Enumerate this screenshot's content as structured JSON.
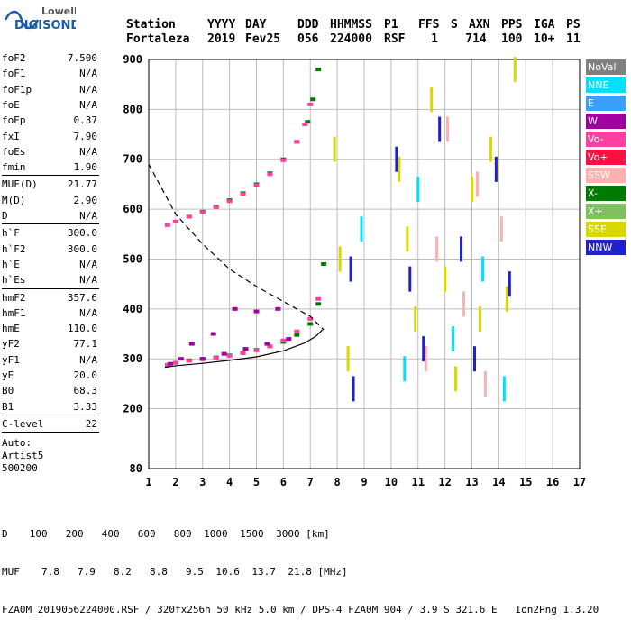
{
  "logo": {
    "top": "Lowell",
    "bottom": "DIGISONDE"
  },
  "header": {
    "labels": [
      "Station",
      "YYYY",
      "DAY",
      "DDD",
      "HHMMSS",
      "P1",
      "FFS",
      "S",
      "AXN",
      "PPS",
      "IGA",
      "PS"
    ],
    "values": [
      "Fortaleza",
      "2019",
      "Fev25",
      "056",
      "224000",
      "RSF",
      "1",
      "714",
      "100",
      "10+",
      "11"
    ]
  },
  "params": {
    "group1": [
      {
        "label": "foF2",
        "value": "7.500"
      },
      {
        "label": "foF1",
        "value": "N/A"
      },
      {
        "label": "foF1p",
        "value": "N/A"
      },
      {
        "label": "foE",
        "value": "N/A"
      },
      {
        "label": "foEp",
        "value": "0.37"
      },
      {
        "label": "fxI",
        "value": "7.90"
      },
      {
        "label": "foEs",
        "value": "N/A"
      },
      {
        "label": "fmin",
        "value": "1.90"
      }
    ],
    "group2": [
      {
        "label": "MUF(D)",
        "value": "21.77"
      },
      {
        "label": "M(D)",
        "value": "2.90"
      },
      {
        "label": "D",
        "value": "N/A"
      }
    ],
    "group3": [
      {
        "label": "h`F",
        "value": "300.0"
      },
      {
        "label": "h`F2",
        "value": "300.0"
      },
      {
        "label": "h`E",
        "value": "N/A"
      },
      {
        "label": "h`Es",
        "value": "N/A"
      }
    ],
    "group4": [
      {
        "label": "hmF2",
        "value": "357.6"
      },
      {
        "label": "hmF1",
        "value": "N/A"
      },
      {
        "label": "hmE",
        "value": "110.0"
      },
      {
        "label": "yF2",
        "value": "77.1"
      },
      {
        "label": "yF1",
        "value": "N/A"
      },
      {
        "label": "yE",
        "value": "20.0"
      },
      {
        "label": "B0",
        "value": "68.3"
      },
      {
        "label": "B1",
        "value": "3.33"
      }
    ],
    "clevel": {
      "label": "C-level",
      "value": "22"
    },
    "auto": [
      "Auto:",
      "Artist5",
      "500200"
    ]
  },
  "legend": [
    {
      "label": "NoVal",
      "color": "#808080"
    },
    {
      "label": "NNE",
      "color": "#00e0ff"
    },
    {
      "label": "E",
      "color": "#3aa0ff"
    },
    {
      "label": "W",
      "color": "#a000a0"
    },
    {
      "label": "Vo-",
      "color": "#ff40a0"
    },
    {
      "label": "Vo+",
      "color": "#ff1040"
    },
    {
      "label": "SSW",
      "color": "#ffb0b0"
    },
    {
      "label": "X-",
      "color": "#007a00"
    },
    {
      "label": "X+",
      "color": "#80c060"
    },
    {
      "label": "SSE",
      "color": "#d8d800"
    },
    {
      "label": "NNW",
      "color": "#2020d0"
    }
  ],
  "footer": {
    "row1": {
      "label": "D",
      "values": [
        "100",
        "200",
        "400",
        "600",
        "800",
        "1000",
        "1500",
        "3000"
      ],
      "unit": "[km]"
    },
    "row2": {
      "label": "MUF",
      "values": [
        "7.8",
        "7.9",
        "8.2",
        "8.8",
        "9.5",
        "10.6",
        "13.7",
        "21.8"
      ],
      "unit": "[MHz]"
    },
    "row3": "FZA0M_2019056224000.RSF / 320fx256h 50 kHz 5.0 km / DPS-4 FZA0M 904 / 3.9 S 321.6 E   Ion2Png 1.3.20"
  },
  "chart_data": {
    "type": "scatter",
    "title": "",
    "xlabel": "",
    "ylabel": "",
    "xlim": [
      1,
      17
    ],
    "ylim": [
      80,
      900
    ],
    "xticks": [
      1,
      2,
      3,
      4,
      5,
      6,
      7,
      8,
      9,
      10,
      11,
      12,
      13,
      14,
      15,
      16,
      17
    ],
    "yticks": [
      80,
      200,
      300,
      400,
      500,
      600,
      700,
      800,
      900
    ],
    "grid": true,
    "legend_position": "right",
    "series": [
      {
        "name": "X-",
        "x": [
          2.0,
          2.5,
          3.0,
          3.5,
          4.0,
          4.5,
          5.0,
          5.5,
          6.0,
          6.5,
          7.0,
          7.3,
          7.5
        ],
        "y": [
          292,
          297,
          300,
          303,
          307,
          312,
          318,
          325,
          334,
          348,
          370,
          410,
          490
        ]
      },
      {
        "name": "Vo-",
        "x": [
          1.7,
          2.0,
          2.5,
          3.0,
          3.5,
          4.0,
          4.5,
          5.0,
          5.5,
          6.0,
          6.5,
          7.0,
          7.3
        ],
        "y": [
          288,
          292,
          296,
          299,
          302,
          306,
          311,
          317,
          325,
          337,
          355,
          380,
          420
        ]
      },
      {
        "name": "X-",
        "x": [
          2.0,
          2.5,
          3.0,
          3.5,
          4.0,
          4.5,
          5.0,
          5.5,
          6.0,
          6.5,
          6.9,
          7.1,
          7.3
        ],
        "y": [
          575,
          585,
          595,
          605,
          618,
          632,
          650,
          672,
          700,
          735,
          775,
          820,
          880
        ]
      },
      {
        "name": "Vo-",
        "x": [
          1.7,
          2.0,
          2.5,
          3.0,
          3.5,
          4.0,
          4.5,
          5.0,
          5.5,
          6.0,
          6.5,
          6.8,
          7.0
        ],
        "y": [
          568,
          575,
          585,
          594,
          604,
          616,
          630,
          648,
          670,
          698,
          735,
          770,
          810
        ]
      },
      {
        "name": "W",
        "x": [
          1.8,
          2.2,
          2.6,
          3.0,
          3.4,
          3.8,
          4.2,
          4.6,
          5.0,
          5.4,
          5.8,
          6.2
        ],
        "y": [
          290,
          300,
          330,
          300,
          350,
          310,
          400,
          320,
          395,
          330,
          400,
          340
        ]
      },
      {
        "name": "SSE",
        "x": [
          7.9,
          8.1,
          8.4,
          10.3,
          10.6,
          10.9,
          11.5,
          12.0,
          12.4,
          13.0,
          13.3,
          13.7,
          14.3,
          14.6
        ],
        "y": [
          720,
          500,
          300,
          680,
          540,
          380,
          820,
          460,
          260,
          640,
          380,
          720,
          420,
          880
        ]
      },
      {
        "name": "NNW",
        "x": [
          8.5,
          8.6,
          10.2,
          10.7,
          11.2,
          11.8,
          12.6,
          13.1,
          13.9,
          14.4
        ],
        "y": [
          480,
          240,
          700,
          460,
          320,
          760,
          520,
          300,
          680,
          450
        ]
      },
      {
        "name": "SSW",
        "x": [
          11.3,
          11.7,
          12.1,
          12.7,
          13.2,
          13.5,
          14.1
        ],
        "y": [
          300,
          520,
          760,
          410,
          650,
          250,
          560
        ]
      },
      {
        "name": "NNE",
        "x": [
          8.9,
          10.5,
          11.0,
          12.3,
          13.4,
          14.2
        ],
        "y": [
          560,
          280,
          640,
          340,
          480,
          240
        ]
      }
    ],
    "profile_line": {
      "x": [
        1.6,
        2.0,
        3.0,
        4.0,
        5.0,
        6.0,
        6.8,
        7.2,
        7.45
      ],
      "y": [
        283,
        286,
        291,
        297,
        304,
        316,
        332,
        345,
        358
      ]
    },
    "profile_dashed": {
      "x": [
        1.0,
        1.5,
        2.0,
        3.0,
        4.0,
        5.0,
        6.0,
        7.0,
        7.5
      ],
      "y": [
        690,
        640,
        590,
        530,
        480,
        445,
        415,
        385,
        358
      ]
    }
  }
}
